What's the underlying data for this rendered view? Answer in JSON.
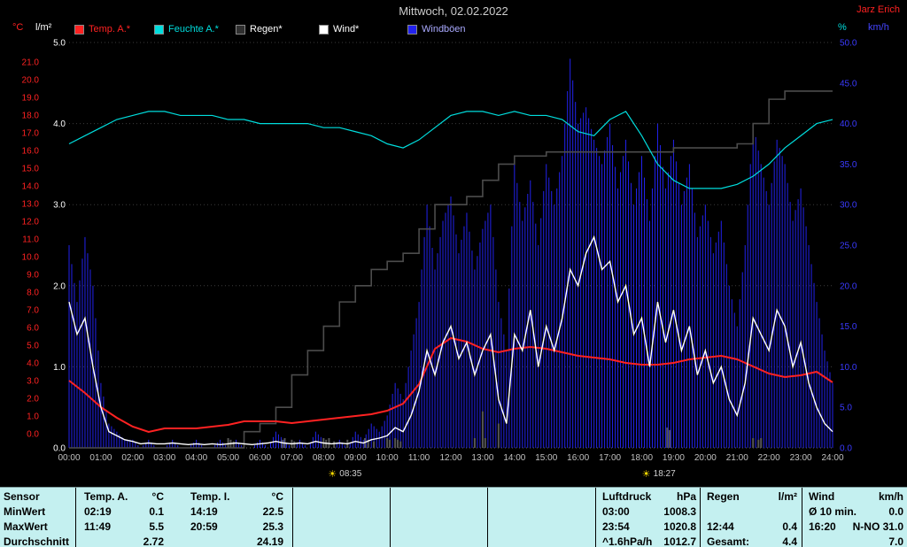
{
  "header": {
    "title": "Mittwoch, 02.02.2022",
    "author": "Jarz Erich"
  },
  "axis_headers": {
    "temp": "°C",
    "rain": "l/m²",
    "humidity": "%",
    "wind": "km/h"
  },
  "legend": {
    "items": [
      {
        "label": "Temp. A.*",
        "swatch": "#ff2222",
        "text": "#ff2222"
      },
      {
        "label": "Feuchte A.*",
        "swatch": "#00dddd",
        "text": "#00dddd"
      },
      {
        "label": "Regen*",
        "swatch": "#303030",
        "text": "#ffffff"
      },
      {
        "label": "Wind*",
        "swatch": "#ffffff",
        "text": "#ffffff"
      },
      {
        "label": "Windböen",
        "swatch": "#2222ee",
        "text": "#aaaaff"
      }
    ]
  },
  "chart_data": {
    "type": "line",
    "title": "Mittwoch, 02.02.2022",
    "x_range_hours": [
      0,
      24
    ],
    "x_ticks": [
      "00:00",
      "01:00",
      "02:00",
      "03:00",
      "04:00",
      "05:00",
      "06:00",
      "07:00",
      "08:00",
      "09:00",
      "10:00",
      "11:00",
      "12:00",
      "13:00",
      "14:00",
      "15:00",
      "16:00",
      "17:00",
      "18:00",
      "19:00",
      "20:00",
      "21:00",
      "22:00",
      "23:00",
      "24:00"
    ],
    "axes": {
      "temp": {
        "label": "°C",
        "color": "#ff2222",
        "range": [
          0,
          21
        ],
        "ticks": [
          "21.0",
          "20.0",
          "19.0",
          "18.0",
          "17.0",
          "16.0",
          "15.0",
          "14.0",
          "13.0",
          "12.0",
          "11.0",
          "10.0",
          "9.0",
          "8.0",
          "7.0",
          "6.0",
          "5.0",
          "4.0",
          "3.0",
          "2.0",
          "1.0",
          "0.0"
        ]
      },
      "rain": {
        "label": "l/m²",
        "color": "#ffffff",
        "range": [
          0,
          5
        ],
        "ticks": [
          "5.0",
          "4.0",
          "3.0",
          "2.0",
          "1.0",
          "0.0"
        ]
      },
      "humidity": {
        "label": "%",
        "color": "#00dddd",
        "range": [
          0,
          100
        ],
        "ticks": []
      },
      "wind": {
        "label": "km/h",
        "color": "#3a3aff",
        "range": [
          0,
          50
        ],
        "ticks": [
          "50.0",
          "45.0",
          "40.0",
          "35.0",
          "30.0",
          "25.0",
          "20.0",
          "15.0",
          "10.0",
          "5.0",
          "0.0"
        ]
      }
    },
    "series": [
      {
        "name": "Temp. A.",
        "slug": "temp-a-line",
        "unit": "°C",
        "axis": "temp",
        "color": "#ff2222",
        "width": 2,
        "x_start": 0,
        "x_step": 0.5,
        "values": [
          3.0,
          2.3,
          1.5,
          0.9,
          0.4,
          0.1,
          0.3,
          0.3,
          0.3,
          0.4,
          0.5,
          0.7,
          0.7,
          0.7,
          0.6,
          0.7,
          0.8,
          0.9,
          1.0,
          1.1,
          1.3,
          1.7,
          2.8,
          4.8,
          5.4,
          5.2,
          4.8,
          4.6,
          4.8,
          4.9,
          4.8,
          4.6,
          4.4,
          4.3,
          4.2,
          4.0,
          3.9,
          3.9,
          4.0,
          4.2,
          4.3,
          4.4,
          4.2,
          3.8,
          3.4,
          3.2,
          3.3,
          3.5,
          2.9
        ]
      },
      {
        "name": "Feuchte A.",
        "slug": "humidity-line",
        "unit": "%",
        "axis": "humidity",
        "color": "#00dddd",
        "width": 1.2,
        "x_start": 0,
        "x_step": 0.5,
        "values": [
          75,
          77,
          79,
          81,
          82,
          83,
          83,
          82,
          82,
          82,
          81,
          81,
          80,
          80,
          80,
          80,
          79,
          79,
          78,
          77,
          75,
          74,
          76,
          79,
          82,
          83,
          83,
          82,
          83,
          82,
          82,
          81,
          78,
          77,
          81,
          83,
          77,
          70,
          66,
          64,
          64,
          64,
          65,
          67,
          70,
          74,
          77,
          80,
          81
        ]
      },
      {
        "name": "Regen",
        "slug": "rain-cumulative-line",
        "unit": "l/m²",
        "axis": "rain",
        "color": "#4c4c4c",
        "width": 1.6,
        "style": "step",
        "x_start": 0,
        "x_step": 0.5,
        "values": [
          0,
          0,
          0,
          0,
          0,
          0,
          0,
          0,
          0,
          0,
          0,
          0.2,
          0.3,
          0.5,
          0.9,
          1.2,
          1.5,
          1.8,
          2.0,
          2.2,
          2.3,
          2.4,
          2.7,
          3.0,
          3.0,
          3.1,
          3.3,
          3.5,
          3.6,
          3.6,
          3.65,
          3.65,
          3.65,
          3.65,
          3.65,
          3.65,
          3.65,
          3.65,
          3.7,
          3.7,
          3.7,
          3.7,
          3.75,
          4.0,
          4.3,
          4.4,
          4.4,
          4.4,
          4.4
        ]
      },
      {
        "name": "Wind",
        "slug": "wind-line",
        "unit": "km/h",
        "axis": "wind",
        "color": "#ffffff",
        "width": 1.4,
        "x_start": 0,
        "x_step": 0.25,
        "values": [
          18,
          14,
          16,
          10,
          5,
          2,
          1.5,
          1,
          0.8,
          0.5,
          0.6,
          0.5,
          0.5,
          0.6,
          0.5,
          0.4,
          0.5,
          0.4,
          0.5,
          0.4,
          0.5,
          0.6,
          0.5,
          0.4,
          0.5,
          0.6,
          0.8,
          0.6,
          0.5,
          0.6,
          0.5,
          0.8,
          0.6,
          0.5,
          0.6,
          0.5,
          0.8,
          0.6,
          1,
          1.2,
          1.5,
          2.5,
          2,
          4,
          7,
          12,
          9,
          13,
          15,
          11,
          13,
          9,
          12,
          14,
          6,
          3,
          14,
          12,
          17,
          10,
          15,
          12,
          16,
          22,
          20,
          24,
          26,
          22,
          23,
          18,
          20,
          14,
          16,
          10,
          18,
          13,
          17,
          12,
          15,
          9,
          12,
          8,
          10,
          6,
          4,
          8,
          16,
          14,
          12,
          17,
          15,
          10,
          13,
          8,
          5,
          3,
          2
        ]
      },
      {
        "name": "Windböen",
        "slug": "wind-gusts-spikes",
        "unit": "km/h",
        "axis": "wind",
        "color": "#2222ee",
        "width": 1,
        "style": "spikes",
        "x_start": 0,
        "x_step": 0.25,
        "values": [
          25,
          18,
          26,
          20,
          8,
          3,
          2,
          1,
          1,
          0,
          1,
          0,
          0,
          1,
          0,
          0,
          1,
          0,
          0,
          1,
          0,
          1,
          0,
          0,
          1,
          0,
          2,
          1,
          0,
          1,
          0,
          2,
          1,
          0,
          1,
          0,
          2,
          1,
          3,
          2,
          4,
          8,
          6,
          12,
          18,
          30,
          22,
          28,
          31,
          24,
          29,
          22,
          27,
          30,
          18,
          12,
          35,
          28,
          33,
          25,
          35,
          30,
          36,
          48,
          40,
          42,
          38,
          35,
          40,
          32,
          38,
          30,
          36,
          28,
          40,
          32,
          38,
          30,
          35,
          26,
          30,
          24,
          28,
          20,
          15,
          25,
          40,
          35,
          30,
          38,
          35,
          28,
          32,
          25,
          18,
          12,
          8
        ]
      }
    ],
    "rain_ticks": [
      [
        5.0,
        0.12
      ],
      [
        5.08,
        0.1
      ],
      [
        5.17,
        0.08
      ],
      [
        6.7,
        0.1
      ],
      [
        6.78,
        0.12
      ],
      [
        7.0,
        0.1
      ],
      [
        7.08,
        0.08
      ],
      [
        8.0,
        0.12
      ],
      [
        8.08,
        0.1
      ],
      [
        8.17,
        0.12
      ],
      [
        8.33,
        0.08
      ],
      [
        8.75,
        0.1
      ],
      [
        9.3,
        0.12
      ],
      [
        9.4,
        0.1
      ],
      [
        9.58,
        0.08
      ],
      [
        10.0,
        0.12
      ],
      [
        10.08,
        0.1
      ],
      [
        10.25,
        0.12
      ],
      [
        10.33,
        0.1
      ],
      [
        10.42,
        0.08
      ],
      [
        12.75,
        0.12
      ],
      [
        13.0,
        0.45
      ],
      [
        13.08,
        0.12
      ],
      [
        13.5,
        0.3
      ],
      [
        18.8,
        0.25
      ],
      [
        18.88,
        0.22
      ],
      [
        21.5,
        0.12
      ],
      [
        21.67,
        0.1
      ],
      [
        21.75,
        0.12
      ]
    ],
    "sun_markers": [
      {
        "name": "sunrise",
        "label": "08:35",
        "t": 8.583
      },
      {
        "name": "sunset",
        "label": "18:27",
        "t": 18.45
      }
    ]
  },
  "stats": {
    "headers": {
      "sensor": "Sensor",
      "temp_a": "Temp. A.",
      "temp_a_unit": "°C",
      "temp_i": "Temp. I.",
      "temp_i_unit": "°C",
      "pressure": "Luftdruck",
      "pressure_unit": "hPa",
      "rain": "Regen",
      "rain_unit": "l/m²",
      "wind": "Wind",
      "wind_unit": "km/h"
    },
    "rows": {
      "min_label": "MinWert",
      "max_label": "MaxWert",
      "avg_label": "Durchschnitt"
    },
    "temp_a": {
      "min_time": "02:19",
      "min_value": "0.1",
      "max_time": "11:49",
      "max_value": "5.5",
      "avg": "2.72"
    },
    "temp_i": {
      "min_time": "14:19",
      "min_value": "22.5",
      "max_time": "20:59",
      "max_value": "25.3",
      "avg": "24.19"
    },
    "pressure": {
      "min_time": "03:00",
      "min_value": "1008.3",
      "max_time": "23:54",
      "max_value": "1020.8",
      "trend": "^1.6hPa/h",
      "avg": "1012.7"
    },
    "rain": {
      "max_time": "12:44",
      "max_value": "0.4",
      "total_label": "Gesamt:",
      "total": "4.4"
    },
    "wind": {
      "min_label": "Ø 10 min.",
      "min_value": "0.0",
      "max_time": "16:20",
      "max_value": "N-NO 31.0",
      "avg": "7.0"
    }
  }
}
